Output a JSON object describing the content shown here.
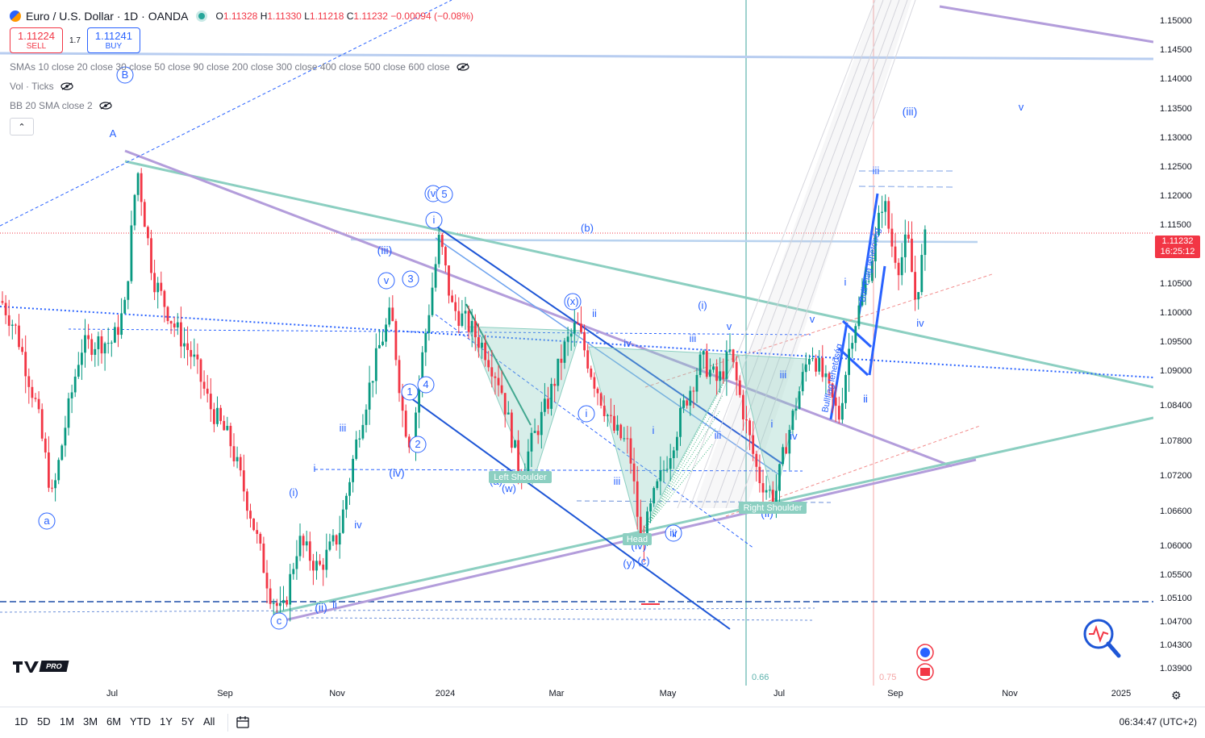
{
  "symbol": {
    "title": "Euro / U.S. Dollar · 1D · OANDA",
    "ohlc": {
      "o_label": "O",
      "o": "1.11328",
      "h_label": "H",
      "h": "1.11330",
      "l_label": "L",
      "l": "1.11218",
      "c_label": "C",
      "c": "1.11232",
      "change": "−0.00094 (−0.08%)"
    }
  },
  "trade": {
    "sell_price": "1.11224",
    "sell_label": "SELL",
    "spread": "1.7",
    "buy_price": "1.11241",
    "buy_label": "BUY"
  },
  "indicators": [
    {
      "label": "SMAs 10 close 20 close 30 close 50 close 90 close 200 close 300 close 400 close 500 close 600 close"
    },
    {
      "label": "Vol · Ticks"
    },
    {
      "label": "BB 20 SMA close 2"
    }
  ],
  "collapse_icon": "chevron-up",
  "price_axis": {
    "ticks": [
      "1.15000",
      "1.14500",
      "1.14000",
      "1.13500",
      "1.13000",
      "1.12500",
      "1.12000",
      "1.11500",
      "1.10500",
      "1.10000",
      "1.09500",
      "1.09000",
      "1.08400",
      "1.07800",
      "1.07200",
      "1.06600",
      "1.06000",
      "1.05500",
      "1.05100",
      "1.04700",
      "1.04300",
      "1.03900"
    ],
    "last_price": "1.11232",
    "countdown": "16:25:12"
  },
  "time_axis": {
    "ticks": [
      "Jul",
      "Sep",
      "Nov",
      "2024",
      "Mar",
      "May",
      "Jul",
      "Sep",
      "Nov",
      "2025"
    ]
  },
  "ranges": [
    "1D",
    "5D",
    "1M",
    "3M",
    "6M",
    "YTD",
    "1Y",
    "5Y",
    "All"
  ],
  "clock": "06:34:47 (UTC+2)",
  "logo_text": "PRO",
  "annotations": {
    "wave_labels": [
      "A",
      "B",
      "a",
      "c",
      "(i)",
      "(ii)",
      "ii",
      "iii",
      "(iii)",
      "(iv)",
      "iv",
      "v",
      "(v)",
      "5",
      "i",
      "1",
      "2",
      "3",
      "4",
      "(b)",
      "(x)",
      "(a)",
      "(w)",
      "(y)",
      "(c)",
      "(iv)",
      "iv",
      "i",
      "ii",
      "iii",
      "(i)",
      "iii",
      "v",
      "iii",
      "i",
      "iv",
      "(ii)",
      "i",
      "ii",
      "v",
      "iv",
      "iii",
      "(iii)",
      "v",
      "ii",
      "iii",
      "i",
      "ii",
      "iv",
      "i"
    ],
    "pattern_labels": [
      "Left Shoulder",
      "Head",
      "Right Shoulder"
    ],
    "notes": [
      "Bull Flag lehetőség",
      "Bullflag lehetőség"
    ],
    "fib_labels": [
      "0.66",
      "0.75"
    ]
  },
  "colors": {
    "up": "#089981",
    "down": "#f23645",
    "wave": "#2962ff",
    "triangle": "#8ccfc1",
    "purple": "#b39ddb",
    "last": "#f23645"
  }
}
